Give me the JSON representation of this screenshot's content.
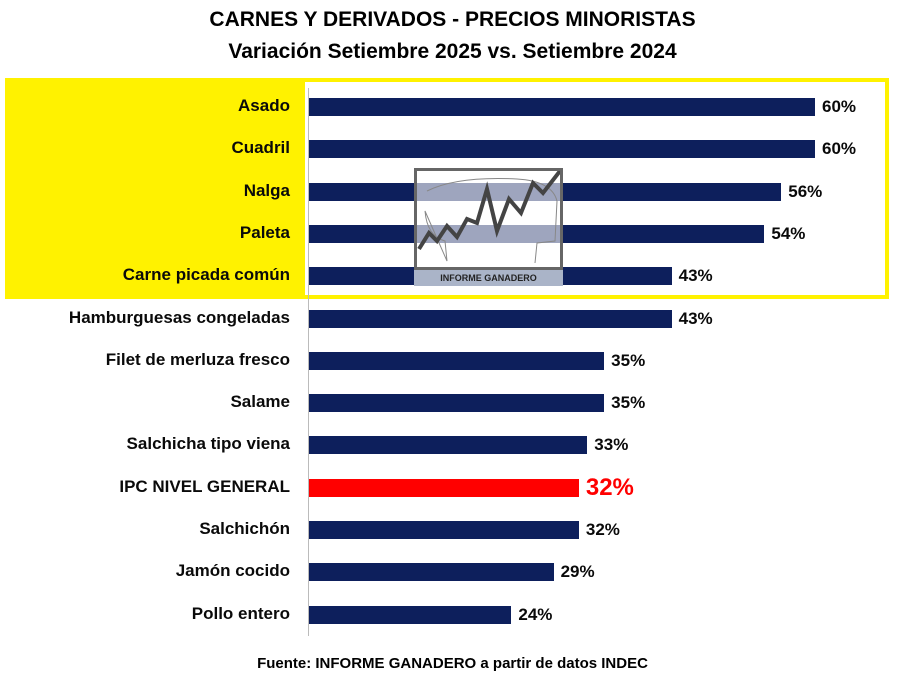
{
  "chart_data": {
    "type": "bar",
    "orientation": "horizontal",
    "title": "CARNES Y DERIVADOS - PRECIOS MINORISTAS",
    "subtitle": "Variación Setiembre 2025 vs. Setiembre 2024",
    "categories": [
      "Asado",
      "Cuadril",
      "Nalga",
      "Paleta",
      "Carne picada común",
      "Hamburguesas congeladas",
      "Filet de merluza fresco",
      "Salame",
      "Salchicha tipo viena",
      "IPC NIVEL GENERAL",
      "Salchichón",
      "Jamón cocido",
      "Pollo entero"
    ],
    "values": [
      60,
      60,
      56,
      54,
      43,
      43,
      35,
      35,
      33,
      32,
      32,
      29,
      24
    ],
    "value_labels": [
      "60%",
      "60%",
      "56%",
      "54%",
      "43%",
      "43%",
      "35%",
      "35%",
      "33%",
      "32%",
      "32%",
      "29%",
      "24%"
    ],
    "highlighted": [
      "Asado",
      "Cuadril",
      "Nalga",
      "Paleta",
      "Carne picada común"
    ],
    "reference_category": "IPC NIVEL GENERAL",
    "xlim": [
      0,
      60
    ],
    "unit": "%",
    "source": "Fuente: INFORME GANADERO a partir de datos INDEC",
    "watermark": "INFORME GANADERO"
  },
  "colors": {
    "bar": "#0d1f5c",
    "reference": "#ff0000",
    "highlight": "#fff200"
  }
}
